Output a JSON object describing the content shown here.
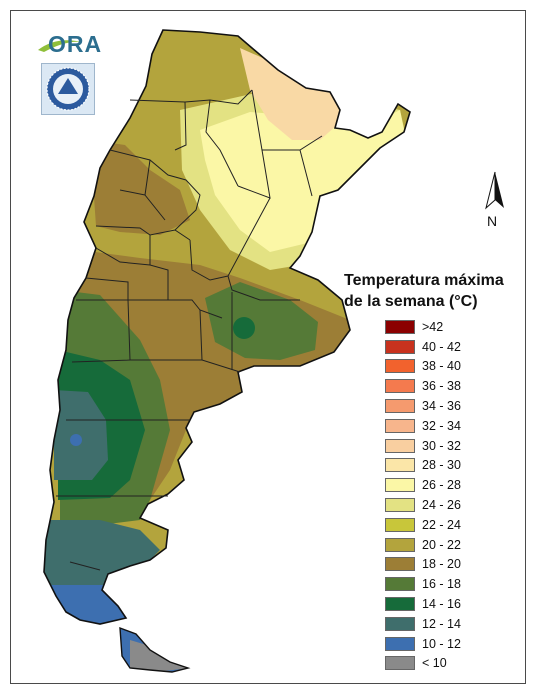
{
  "logo": {
    "text": "ORA"
  },
  "north_arrow": {
    "label": "N"
  },
  "legend": {
    "title_line1": "Temperatura máxima",
    "title_line2": "de la semana (°C)",
    "items": [
      {
        "label": ">42",
        "color": "#8b0000"
      },
      {
        "label": "40 - 42",
        "color": "#c8321e"
      },
      {
        "label": "38 - 40",
        "color": "#f2622d"
      },
      {
        "label": "36 - 38",
        "color": "#f47a4e"
      },
      {
        "label": "34 - 36",
        "color": "#f59a6e"
      },
      {
        "label": "32 - 34",
        "color": "#f7b58c"
      },
      {
        "label": "30 - 32",
        "color": "#f9cfa0"
      },
      {
        "label": "28 - 30",
        "color": "#fbe6a8"
      },
      {
        "label": "26 - 28",
        "color": "#fbf7a6"
      },
      {
        "label": "24 - 26",
        "color": "#e3e283"
      },
      {
        "label": "22 - 24",
        "color": "#c8c63a"
      },
      {
        "label": "20 - 22",
        "color": "#b3a43d"
      },
      {
        "label": "18 - 20",
        "color": "#9c7e36"
      },
      {
        "label": "16 - 18",
        "color": "#557a37"
      },
      {
        "label": "14 - 16",
        "color": "#166b3a"
      },
      {
        "label": "12 - 14",
        "color": "#3f6e6c"
      },
      {
        "label": "10 - 12",
        "color": "#3d6fb0"
      },
      {
        "label": "< 10",
        "color": "#8a8a8a"
      }
    ]
  },
  "map_zones": [
    {
      "name": "28-30",
      "color": "#f9d9a5"
    },
    {
      "name": "26-28",
      "color": "#fbf7a6"
    },
    {
      "name": "24-26",
      "color": "#e3e283"
    },
    {
      "name": "22-24",
      "color": "#c8c63a"
    },
    {
      "name": "20-22",
      "color": "#b3a43d"
    },
    {
      "name": "18-20",
      "color": "#9c7e36"
    },
    {
      "name": "16-18",
      "color": "#557a37"
    },
    {
      "name": "14-16",
      "color": "#166b3a"
    },
    {
      "name": "12-14",
      "color": "#3f6e6c"
    },
    {
      "name": "10-12",
      "color": "#3d6fb0"
    },
    {
      "name": "<10",
      "color": "#8a8a8a"
    }
  ]
}
